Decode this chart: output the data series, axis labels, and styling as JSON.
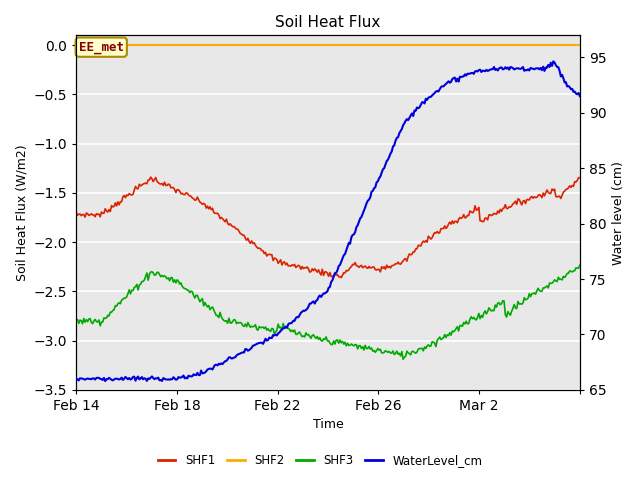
{
  "title": "Soil Heat Flux",
  "xlabel": "Time",
  "ylabel_left": "Soil Heat Flux (W/m2)",
  "ylabel_right": "Water level (cm)",
  "annotation_text": "EE_met",
  "annotation_bg": "#ffffcc",
  "annotation_border": "#aa8800",
  "annotation_text_color": "#880000",
  "xlim_start": 0,
  "xlim_end": 20,
  "ylim_left": [
    -3.5,
    0.1
  ],
  "ylim_right": [
    65,
    97
  ],
  "xtick_positions": [
    0,
    4,
    8,
    12,
    16,
    20
  ],
  "xtick_labels": [
    "Feb 14",
    "Feb 18",
    "Feb 22",
    "Feb 26",
    "Mar 2",
    ""
  ],
  "ytick_left": [
    0.0,
    -0.5,
    -1.0,
    -1.5,
    -2.0,
    -2.5,
    -3.0,
    -3.5
  ],
  "ytick_right": [
    65,
    70,
    75,
    80,
    85,
    90,
    95
  ],
  "fig_bg_color": "#ffffff",
  "plot_bg_color": "#e8e8e8",
  "grid_color": "#ffffff",
  "colors": {
    "SHF1": "#dd2200",
    "SHF2": "#ffaa00",
    "SHF3": "#00aa00",
    "WaterLevel_cm": "#0000dd"
  }
}
